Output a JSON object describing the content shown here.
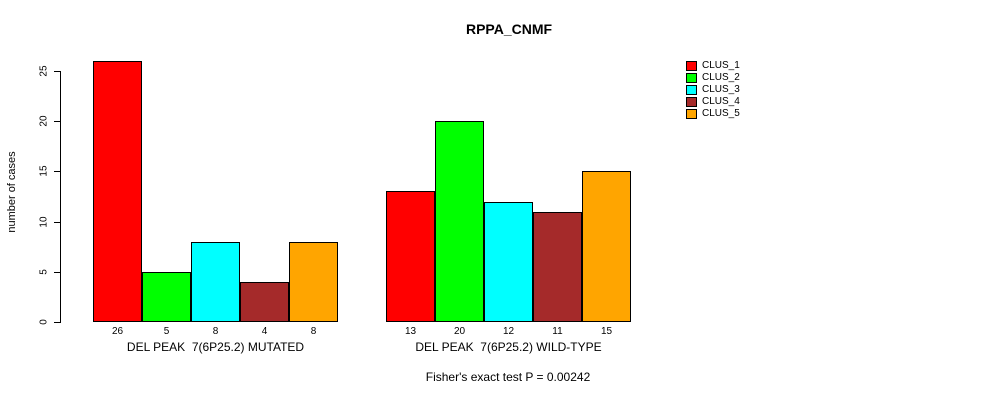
{
  "title": "RPPA_CNMF",
  "y_axis": {
    "label": "number of cases",
    "ticks": [
      "0",
      "5",
      "10",
      "15",
      "20",
      "25"
    ]
  },
  "footer": "Fisher's exact test P = 0.00242",
  "legend": {
    "position": "right",
    "entries": [
      {
        "label": "CLUS_1",
        "color": "#FF0000"
      },
      {
        "label": "CLUS_2",
        "color": "#00FF00"
      },
      {
        "label": "CLUS_3",
        "color": "#00FFFF"
      },
      {
        "label": "CLUS_4",
        "color": "#A52A2A"
      },
      {
        "label": "CLUS_5",
        "color": "#FFA500"
      }
    ]
  },
  "chart_data": {
    "type": "bar",
    "title": "RPPA_CNMF",
    "xlabel": "",
    "ylabel": "number of cases",
    "ylim": [
      0,
      26
    ],
    "yticks": [
      0,
      5,
      10,
      15,
      20,
      25
    ],
    "grid": false,
    "legend_position": "right",
    "series_names": [
      "CLUS_1",
      "CLUS_2",
      "CLUS_3",
      "CLUS_4",
      "CLUS_5"
    ],
    "series_colors": [
      "#FF0000",
      "#00FF00",
      "#00FFFF",
      "#A52A2A",
      "#FFA500"
    ],
    "groups": [
      {
        "label": "DEL PEAK  7(6P25.2) MUTATED",
        "values": [
          26,
          5,
          8,
          4,
          8
        ]
      },
      {
        "label": "DEL PEAK  7(6P25.2) WILD-TYPE",
        "values": [
          13,
          20,
          12,
          11,
          15
        ]
      }
    ],
    "annotation": "Fisher's exact test P = 0.00242"
  }
}
